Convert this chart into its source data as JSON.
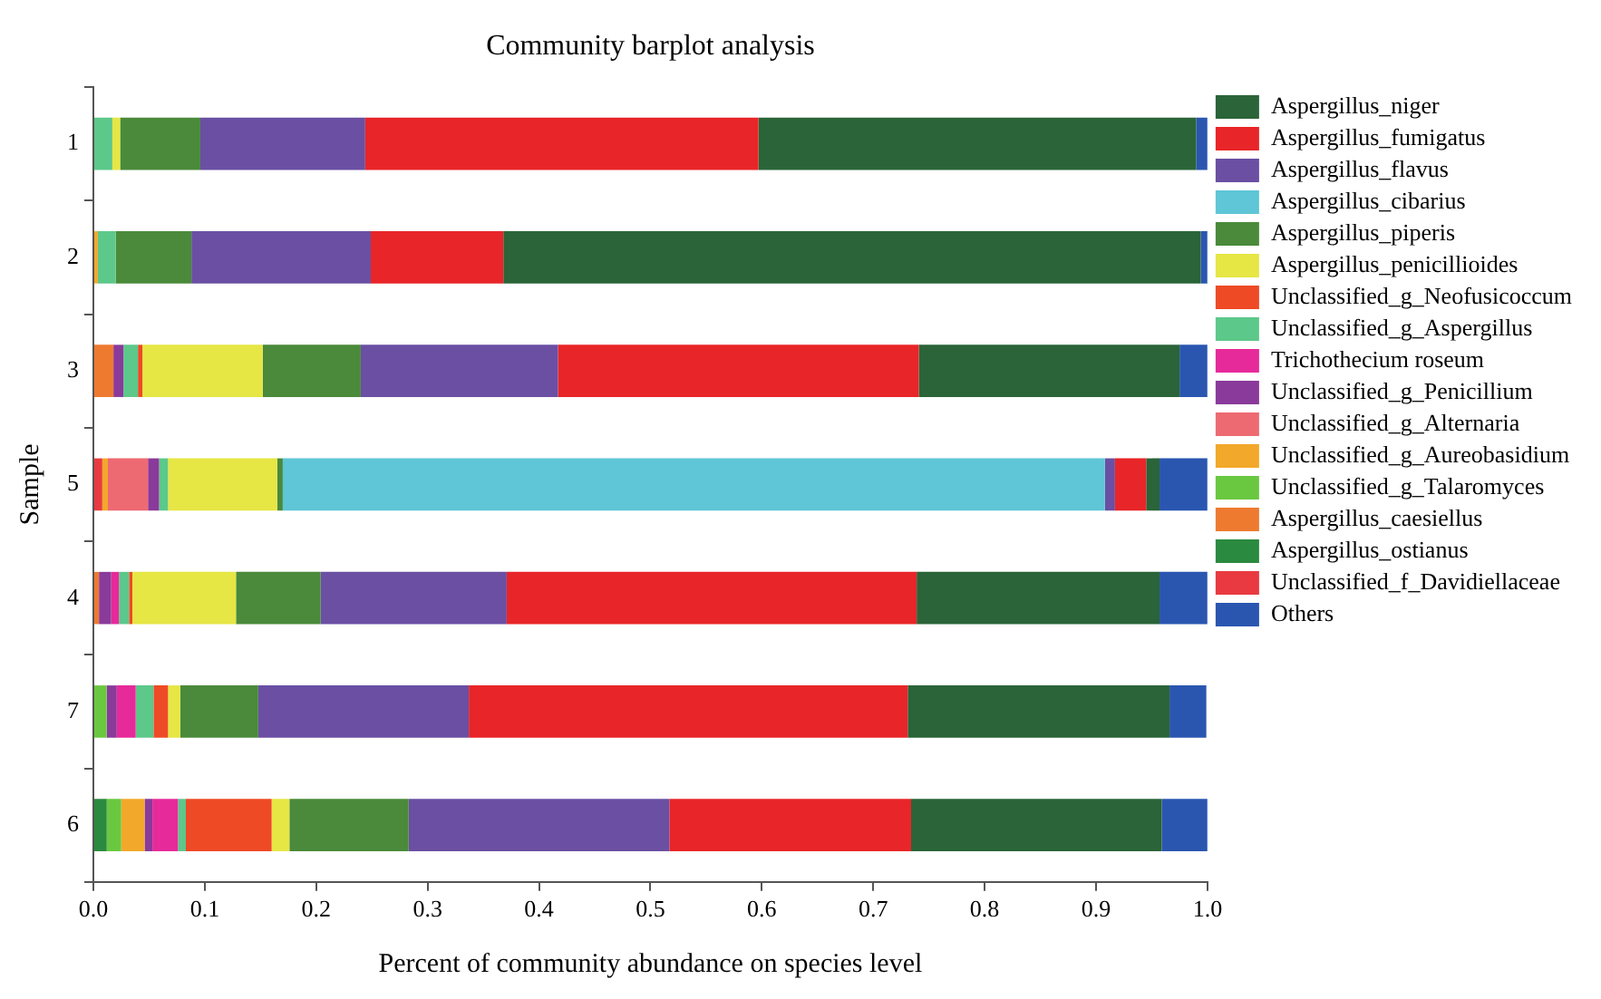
{
  "chart_data": {
    "type": "bar",
    "orientation": "horizontal",
    "stacked": true,
    "title": "Community barplot analysis",
    "xlabel": "Percent of community abundance on species level",
    "ylabel": "Sample",
    "categories": [
      "1",
      "2",
      "3",
      "5",
      "4",
      "7",
      "6"
    ],
    "xlim": [
      0,
      1
    ],
    "xticks": [
      {
        "value": 0,
        "label": "0.0"
      },
      0.1,
      0.2,
      0.3,
      0.4,
      0.5,
      0.6,
      0.7,
      0.8,
      0.9,
      {
        "value": 1,
        "label": "1.0"
      }
    ],
    "grid": false,
    "legend": "right",
    "series": [
      {
        "name": "Unclassified_f_Davidiellaceae",
        "color": "#e83a40",
        "values": [
          0,
          0,
          0,
          0.008,
          0,
          0,
          0
        ]
      },
      {
        "name": "Aspergillus_ostianus",
        "color": "#2a8a40",
        "values": [
          0,
          0,
          0,
          0,
          0,
          0,
          0.012
        ]
      },
      {
        "name": "Aspergillus_caesiellus",
        "color": "#ee7a30",
        "values": [
          0,
          0,
          0.018,
          0,
          0.005,
          0,
          0
        ]
      },
      {
        "name": "Unclassified_g_Talaromyces",
        "color": "#6ac840",
        "values": [
          0,
          0,
          0,
          0,
          0,
          0.012,
          0.013
        ]
      },
      {
        "name": "Unclassified_g_Aureobasidium",
        "color": "#f2a82a",
        "values": [
          0,
          0.004,
          0,
          0.005,
          0,
          0,
          0.021
        ]
      },
      {
        "name": "Unclassified_g_Alternaria",
        "color": "#ee6a72",
        "values": [
          0,
          0,
          0,
          0.036,
          0,
          0,
          0
        ]
      },
      {
        "name": "Unclassified_g_Penicillium",
        "color": "#8a3a9a",
        "values": [
          0,
          0,
          0.009,
          0.01,
          0.011,
          0.009,
          0.007
        ]
      },
      {
        "name": "Trichothecium roseum",
        "color": "#e62a9a",
        "values": [
          0,
          0,
          0,
          0,
          0.007,
          0.017,
          0.023
        ]
      },
      {
        "name": "Unclassified_g_Aspergillus",
        "color": "#5cc88a",
        "values": [
          0.017,
          0.016,
          0.013,
          0.008,
          0.009,
          0.016,
          0.007
        ]
      },
      {
        "name": "Unclassified_g_Neofusicoccum",
        "color": "#ee4a25",
        "values": [
          0,
          0,
          0.004,
          0,
          0.003,
          0.013,
          0.077
        ]
      },
      {
        "name": "Aspergillus_penicillioides",
        "color": "#e6e645",
        "values": [
          0.007,
          0,
          0.108,
          0.098,
          0.093,
          0.011,
          0.016
        ]
      },
      {
        "name": "Aspergillus_piperis",
        "color": "#4a8a3a",
        "values": [
          0.072,
          0.068,
          0.088,
          0.005,
          0.076,
          0.07,
          0.107
        ]
      },
      {
        "name": "Aspergillus_cibarius",
        "color": "#5ec6d6",
        "values": [
          0,
          0,
          0,
          0.738,
          0,
          0,
          0
        ]
      },
      {
        "name": "Aspergillus_flavus",
        "color": "#6a4fa3",
        "values": [
          0.148,
          0.161,
          0.177,
          0.009,
          0.167,
          0.189,
          0.234
        ]
      },
      {
        "name": "Aspergillus_fumigatus",
        "color": "#e82528",
        "values": [
          0.353,
          0.119,
          0.324,
          0.028,
          0.368,
          0.394,
          0.217
        ]
      },
      {
        "name": "Aspergillus_niger",
        "color": "#2a6438",
        "values": [
          0.393,
          0.626,
          0.234,
          0.012,
          0.218,
          0.235,
          0.225
        ]
      },
      {
        "name": "Others",
        "color": "#2a56b0",
        "values": [
          0.01,
          0.006,
          0.025,
          0.043,
          0.043,
          0.033,
          0.041
        ]
      }
    ]
  }
}
